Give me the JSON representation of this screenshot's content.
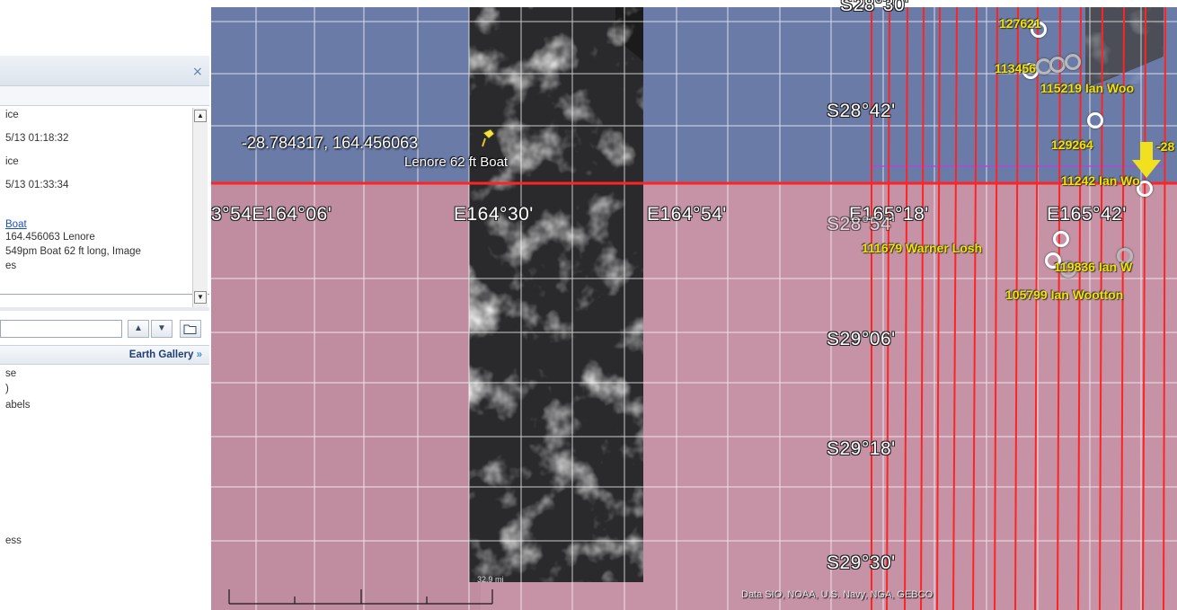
{
  "sidebar": {
    "list_lines": [
      "ice",
      "5/13 01:18:32",
      "ice",
      "5/13 01:33:34",
      "Boat",
      "164.456063 Lenore",
      "549pm Boat 62 ft long, Image",
      "es"
    ],
    "gallery_label": "Earth Gallery",
    "gallery_chevron": "»",
    "layer_lines": [
      "se",
      ")",
      "abels",
      "ess"
    ],
    "icons": {
      "close": "×",
      "scroll_up": "▲",
      "scroll_down": "▼",
      "move_up": "▲",
      "move_down": "▼",
      "folder": "folder-icon"
    }
  },
  "map": {
    "grid_labels": {
      "lon": [
        "3°54E164°06'",
        "E164°30'",
        "E164°54'",
        "E165°18'",
        "E165°42'"
      ],
      "lat": [
        "S28°42'",
        "S28°54'",
        "S29°06'",
        "S29°18'",
        "S29°30'"
      ],
      "lat_partial_top": "S28°30'"
    },
    "coordinates_text": "-28.784317,  164.456063",
    "boat_label": "Lenore 62 ft Boat",
    "placemarks": [
      "127621",
      "113456",
      "115219 Ian Woo",
      "129264",
      "-28",
      "11242 Ian Wo",
      "111679 Warner Losh",
      "119836 Ian W",
      "105799 Ian Wootton"
    ],
    "attribution": "Data SIO, NOAA, U.S. Navy, NGA, GEBCO",
    "scale_label": "32.9 mi",
    "colors": {
      "ocean_north": "#6a7ba8",
      "ocean_south": "#c592a6",
      "grid": "#ffffff",
      "search_lines": "#ff2020",
      "placemark_text": "#f3e200"
    }
  }
}
